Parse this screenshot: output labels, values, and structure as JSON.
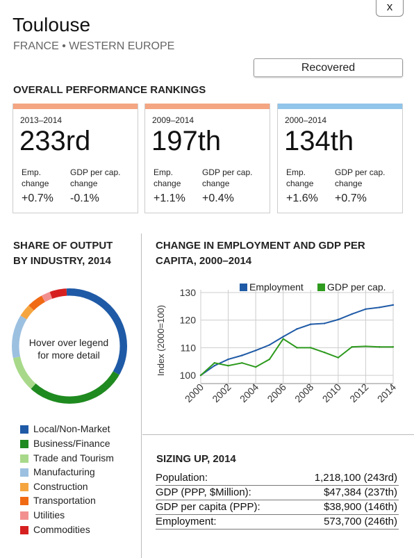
{
  "header": {
    "close_label": "x",
    "title": "Toulouse",
    "subtitle": "FRANCE • WESTERN EUROPE",
    "status": "Recovered"
  },
  "rankings": {
    "heading": "OVERALL PERFORMANCE RANKINGS",
    "emp_label_1": "Emp.",
    "emp_label_2": "change",
    "gdp_label_1": "GDP per cap.",
    "gdp_label_2": "change",
    "cards": [
      {
        "period": "2013–2014",
        "rank": "233rd",
        "emp": "+0.7%",
        "gdp": "-0.1%",
        "color": "#f4a582"
      },
      {
        "period": "2009–2014",
        "rank": "197th",
        "emp": "+1.1%",
        "gdp": "+0.4%",
        "color": "#f4a582"
      },
      {
        "period": "2000–2014",
        "rank": "134th",
        "emp": "+1.6%",
        "gdp": "+0.7%",
        "color": "#92c5ea"
      }
    ]
  },
  "output": {
    "heading_1": "SHARE OF OUTPUT",
    "heading_2": "BY INDUSTRY, 2014",
    "center_1": "Hover over legend",
    "center_2": "for more detail",
    "legend": [
      {
        "label": "Local/Non-Market",
        "color": "#1f5aa6"
      },
      {
        "label": "Business/Finance",
        "color": "#1f8a1f"
      },
      {
        "label": "Trade and Tourism",
        "color": "#a8d98a"
      },
      {
        "label": "Manufacturing",
        "color": "#9cc0e0"
      },
      {
        "label": "Construction",
        "color": "#f5a540"
      },
      {
        "label": "Transportation",
        "color": "#f06a14"
      },
      {
        "label": "Utilities",
        "color": "#f29090"
      },
      {
        "label": "Commodities",
        "color": "#d62020"
      }
    ]
  },
  "chart_data": {
    "type": "line",
    "title": "CHANGE IN EMPLOYMENT AND GDP PER CAPITA, 2000–2014",
    "title_line1": "CHANGE IN EMPLOYMENT AND GDP PER",
    "title_line2": "CAPITA, 2000–2014",
    "ylabel": "Index (2000=100)",
    "xlabel": "",
    "x": [
      2000,
      2001,
      2002,
      2003,
      2004,
      2005,
      2006,
      2007,
      2008,
      2009,
      2010,
      2011,
      2012,
      2013,
      2014
    ],
    "xticks": [
      "2000",
      "2002",
      "2004",
      "2006",
      "2008",
      "2010",
      "2012",
      "2014"
    ],
    "yticks": [
      "100",
      "110",
      "120",
      "130"
    ],
    "ylim": [
      97,
      131
    ],
    "series": [
      {
        "name": "Employment",
        "color": "#1f5aa6",
        "values": [
          100,
          103.5,
          105.8,
          107.2,
          109,
          111,
          114,
          116.8,
          118.5,
          118.8,
          120.2,
          122.2,
          124,
          124.6,
          125.5
        ]
      },
      {
        "name": "GDP per cap.",
        "color": "#2e9a1e",
        "values": [
          100,
          104.5,
          103.5,
          104.5,
          103,
          105.8,
          113.2,
          110,
          110,
          108.3,
          106.4,
          110.3,
          110.5,
          110.3,
          110.3
        ]
      }
    ]
  },
  "sizing": {
    "heading": "SIZING UP, 2014",
    "rows": [
      {
        "label": "Population:",
        "value": "1,218,100 (243rd)"
      },
      {
        "label": "GDP (PPP, $Million):",
        "value": "$47,384 (237th)"
      },
      {
        "label": "GDP per capita (PPP):",
        "value": "$38,900 (146th)"
      },
      {
        "label": "Employment:",
        "value": "573,700 (246th)"
      }
    ]
  }
}
